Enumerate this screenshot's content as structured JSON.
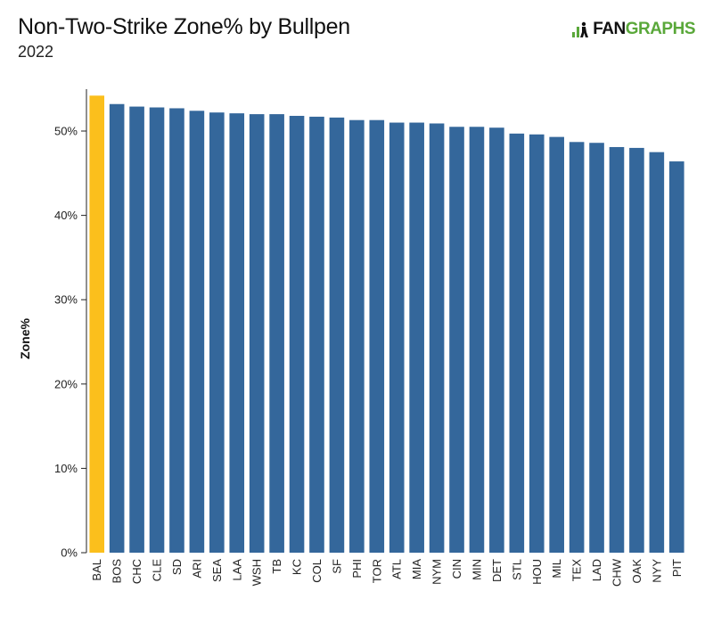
{
  "header": {
    "title": "Non-Two-Strike Zone% by Bullpen",
    "subtitle": "2022"
  },
  "logo": {
    "text_part1": "FAN",
    "text_part2": "GRAPHS",
    "icon": "fangraphs-logo-icon",
    "color_dark": "#111111",
    "color_green": "#5aa83a"
  },
  "colors": {
    "bar_default": "#34679b",
    "bar_highlight": "#fbbf1c",
    "axis": "#222222"
  },
  "chart_data": {
    "type": "bar",
    "ylabel": "Zone%",
    "xlabel": "",
    "ylim": [
      0,
      55
    ],
    "yticks": [
      0,
      10,
      20,
      30,
      40,
      50
    ],
    "ytick_labels": [
      "0%",
      "10%",
      "20%",
      "30%",
      "40%",
      "50%"
    ],
    "highlight_category": "BAL",
    "categories": [
      "BAL",
      "BOS",
      "CHC",
      "CLE",
      "SD",
      "ARI",
      "SEA",
      "LAA",
      "WSH",
      "TB",
      "KC",
      "COL",
      "SF",
      "PHI",
      "TOR",
      "ATL",
      "MIA",
      "NYM",
      "CIN",
      "MIN",
      "DET",
      "STL",
      "HOU",
      "MIL",
      "TEX",
      "LAD",
      "CHW",
      "OAK",
      "NYY",
      "PIT"
    ],
    "values": [
      54.2,
      53.2,
      52.9,
      52.8,
      52.7,
      52.4,
      52.2,
      52.1,
      52.0,
      52.0,
      51.8,
      51.7,
      51.6,
      51.3,
      51.3,
      51.0,
      51.0,
      50.9,
      50.5,
      50.5,
      50.4,
      49.7,
      49.6,
      49.3,
      48.7,
      48.6,
      48.1,
      48.0,
      47.5,
      46.4
    ],
    "grid": false,
    "legend": "none"
  }
}
